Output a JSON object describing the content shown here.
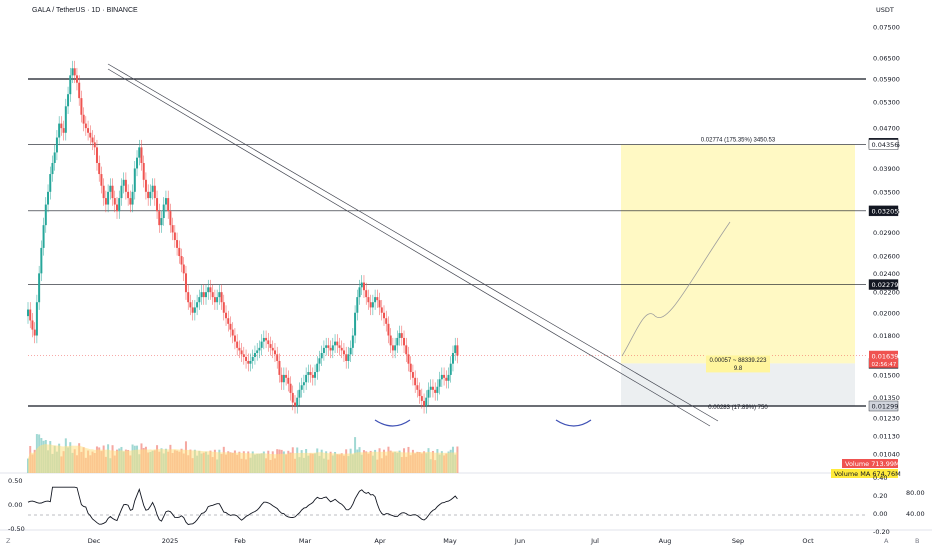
{
  "header": {
    "title": "GALA / TetherUS · 1D · BINANCE",
    "currency": "USDT"
  },
  "colors": {
    "up": "#26a69a",
    "down": "#ef5350",
    "volume_ma": "#ffe082",
    "target_zone": "#fff9c4",
    "stop_zone": "#eceff1",
    "arc": "#3f51b5"
  },
  "price_axis": {
    "ticks": [
      "0.07500",
      "0.06500",
      "0.05900",
      "0.05300",
      "0.04700",
      "0.04356",
      "0.03900",
      "0.03500",
      "0.03205",
      "0.02900",
      "0.02600",
      "0.02400",
      "0.02200",
      "0.02000",
      "0.01800",
      "0.01500",
      "0.01350",
      "0.01230",
      "0.01130",
      "0.01040"
    ],
    "badges": [
      {
        "label": "0.04383",
        "style": "dark",
        "value": 0.04383
      },
      {
        "label": "0.04356",
        "style": "light",
        "value": 0.04356
      },
      {
        "label": "0.03205",
        "style": "dark",
        "value": 0.03205
      },
      {
        "label": "0.02279",
        "style": "dark",
        "value": 0.02279
      },
      {
        "label": "0.01582",
        "style": "dark",
        "value": 0.01582
      },
      {
        "label": "0.01299",
        "style": "grey",
        "value": 0.01299
      }
    ],
    "current": {
      "price": "0.01639",
      "countdown": "02:56:47",
      "value": 0.01639
    }
  },
  "time_axis": {
    "labels": [
      "Dec",
      "2025",
      "Feb",
      "Mar",
      "Apr",
      "May",
      "Jun",
      "Jul",
      "Aug",
      "Sep",
      "Oct"
    ]
  },
  "levels": [
    {
      "name": "resistance-0.05900",
      "value": 0.059,
      "strong": true
    },
    {
      "name": "resistance-0.04356",
      "value": 0.04356,
      "strong": false
    },
    {
      "name": "resistance-0.03205",
      "value": 0.03205,
      "strong": false
    },
    {
      "name": "resistance-0.02279",
      "value": 0.02279,
      "strong": false
    },
    {
      "name": "support-0.01299",
      "value": 0.01299,
      "strong": true
    }
  ],
  "position": {
    "entry": 0.01582,
    "target": 0.04356,
    "stop": 0.01299,
    "target_label": "0.02774 (175.35%) 3450.53",
    "entry_label_1": "0.00057 ~ 88339.223",
    "entry_label_2": "9.8",
    "stop_label": "0.00283 (17.89%) 750"
  },
  "volume": {
    "label": "Volume",
    "value": "713.99M",
    "ma_label": "Volume MA",
    "ma_value": "674.76M",
    "axis_ticks": [
      "0.40"
    ]
  },
  "oscillator": {
    "left_ticks": [
      "0.50",
      "0.00",
      "-0.50"
    ],
    "right_ticks": [
      "0.20",
      "0.00",
      "-0.20"
    ],
    "far_ticks": [
      "80.00",
      "40.00"
    ]
  },
  "bottom_icons": [
    "Z",
    "A",
    "B"
  ],
  "chart_data": {
    "type": "candlestick",
    "title": "GALA / TetherUS · 1D · BINANCE",
    "x_start": "2024-11-15",
    "x_end": "2025-07-14",
    "y_scale": "log",
    "ylim": [
      0.0104,
      0.075
    ],
    "closes": [
      0.0203,
      0.0193,
      0.0185,
      0.018,
      0.021,
      0.024,
      0.027,
      0.03,
      0.033,
      0.035,
      0.038,
      0.04,
      0.042,
      0.045,
      0.048,
      0.047,
      0.046,
      0.052,
      0.055,
      0.06,
      0.062,
      0.06,
      0.058,
      0.054,
      0.05,
      0.048,
      0.047,
      0.046,
      0.045,
      0.044,
      0.043,
      0.04,
      0.038,
      0.036,
      0.034,
      0.033,
      0.035,
      0.036,
      0.034,
      0.033,
      0.032,
      0.034,
      0.036,
      0.037,
      0.035,
      0.034,
      0.033,
      0.035,
      0.039,
      0.041,
      0.043,
      0.04,
      0.037,
      0.035,
      0.034,
      0.035,
      0.036,
      0.034,
      0.032,
      0.03,
      0.031,
      0.033,
      0.034,
      0.032,
      0.03,
      0.029,
      0.028,
      0.027,
      0.026,
      0.025,
      0.024,
      0.022,
      0.021,
      0.0205,
      0.02,
      0.0205,
      0.021,
      0.0215,
      0.022,
      0.0215,
      0.022,
      0.0225,
      0.022,
      0.0215,
      0.021,
      0.0215,
      0.022,
      0.021,
      0.02,
      0.0195,
      0.019,
      0.0185,
      0.018,
      0.0175,
      0.017,
      0.0168,
      0.0165,
      0.0163,
      0.016,
      0.0158,
      0.016,
      0.0163,
      0.0166,
      0.0168,
      0.017,
      0.0175,
      0.0178,
      0.0176,
      0.0173,
      0.017,
      0.0168,
      0.0165,
      0.016,
      0.015,
      0.0145,
      0.015,
      0.0148,
      0.0144,
      0.0138,
      0.0132,
      0.013,
      0.0135,
      0.014,
      0.0143,
      0.0145,
      0.015,
      0.0152,
      0.015,
      0.0148,
      0.0152,
      0.0158,
      0.0162,
      0.0166,
      0.017,
      0.0172,
      0.017,
      0.0168,
      0.0172,
      0.0175,
      0.0172,
      0.017,
      0.0168,
      0.0165,
      0.016,
      0.0165,
      0.017,
      0.018,
      0.02,
      0.0215,
      0.0225,
      0.023,
      0.0222,
      0.0215,
      0.021,
      0.0205,
      0.021,
      0.0215,
      0.0212,
      0.0205,
      0.02,
      0.0195,
      0.019,
      0.018,
      0.0172,
      0.0168,
      0.0172,
      0.0178,
      0.0182,
      0.0178,
      0.0172,
      0.0165,
      0.0158,
      0.0152,
      0.0148,
      0.0143,
      0.014,
      0.0136,
      0.0133,
      0.013,
      0.0135,
      0.014,
      0.0142,
      0.014,
      0.0138,
      0.0142,
      0.0147,
      0.015,
      0.0148,
      0.0146,
      0.015,
      0.0158,
      0.0166,
      0.0172,
      0.0164
    ]
  }
}
